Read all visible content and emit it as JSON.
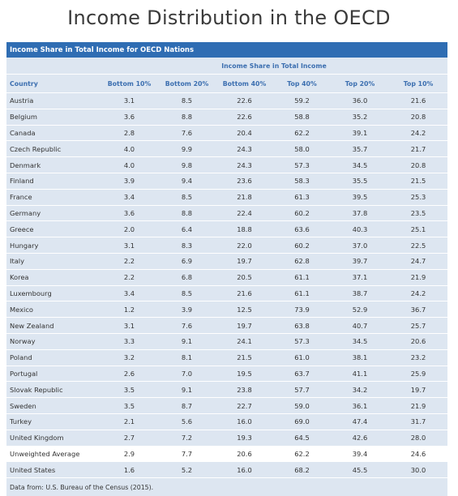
{
  "title": "Income Distribution in the OECD",
  "table": {
    "caption": "Income Share in Total Income for OECD Nations",
    "group_header": "Income Share in Total Income",
    "columns": [
      "Country",
      "Bottom 10%",
      "Bottom 20%",
      "Bottom 40%",
      "Top 40%",
      "Top 20%",
      "Top 10%"
    ],
    "rows": [
      [
        "Austria",
        "3.1",
        "8.5",
        "22.6",
        "59.2",
        "36.0",
        "21.6"
      ],
      [
        "Belgium",
        "3.6",
        "8.8",
        "22.6",
        "58.8",
        "35.2",
        "20.8"
      ],
      [
        "Canada",
        "2.8",
        "7.6",
        "20.4",
        "62.2",
        "39.1",
        "24.2"
      ],
      [
        "Czech Republic",
        "4.0",
        "9.9",
        "24.3",
        "58.0",
        "35.7",
        "21.7"
      ],
      [
        "Denmark",
        "4.0",
        "9.8",
        "24.3",
        "57.3",
        "34.5",
        "20.8"
      ],
      [
        "Finland",
        "3.9",
        "9.4",
        "23.6",
        "58.3",
        "35.5",
        "21.5"
      ],
      [
        "France",
        "3.4",
        "8.5",
        "21.8",
        "61.3",
        "39.5",
        "25.3"
      ],
      [
        "Germany",
        "3.6",
        "8.8",
        "22.4",
        "60.2",
        "37.8",
        "23.5"
      ],
      [
        "Greece",
        "2.0",
        "6.4",
        "18.8",
        "63.6",
        "40.3",
        "25.1"
      ],
      [
        "Hungary",
        "3.1",
        "8.3",
        "22.0",
        "60.2",
        "37.0",
        "22.5"
      ],
      [
        "Italy",
        "2.2",
        "6.9",
        "19.7",
        "62.8",
        "39.7",
        "24.7"
      ],
      [
        "Korea",
        "2.2",
        "6.8",
        "20.5",
        "61.1",
        "37.1",
        "21.9"
      ],
      [
        "Luxembourg",
        "3.4",
        "8.5",
        "21.6",
        "61.1",
        "38.7",
        "24.2"
      ],
      [
        "Mexico",
        "1.2",
        "3.9",
        "12.5",
        "73.9",
        "52.9",
        "36.7"
      ],
      [
        "New Zealand",
        "3.1",
        "7.6",
        "19.7",
        "63.8",
        "40.7",
        "25.7"
      ],
      [
        "Norway",
        "3.3",
        "9.1",
        "24.1",
        "57.3",
        "34.5",
        "20.6"
      ],
      [
        "Poland",
        "3.2",
        "8.1",
        "21.5",
        "61.0",
        "38.1",
        "23.2"
      ],
      [
        "Portugal",
        "2.6",
        "7.0",
        "19.5",
        "63.7",
        "41.1",
        "25.9"
      ],
      [
        "Slovak Republic",
        "3.5",
        "9.1",
        "23.8",
        "57.7",
        "34.2",
        "19.7"
      ],
      [
        "Sweden",
        "3.5",
        "8.7",
        "22.7",
        "59.0",
        "36.1",
        "21.9"
      ],
      [
        "Turkey",
        "2.1",
        "5.6",
        "16.0",
        "69.0",
        "47.4",
        "31.7"
      ],
      [
        "United Kingdom",
        "2.7",
        "7.2",
        "19.3",
        "64.5",
        "42.6",
        "28.0"
      ],
      [
        "Unweighted Average",
        "2.9",
        "7.7",
        "20.6",
        "62.2",
        "39.4",
        "24.6"
      ],
      [
        "United States",
        "1.6",
        "5.2",
        "16.0",
        "68.2",
        "45.5",
        "30.0"
      ]
    ],
    "highlight_row": "Unweighted Average",
    "source": "Data from: U.S. Bureau of the Census (2015)."
  },
  "colors": {
    "header_bar": "#2f6db3",
    "row_bg": "#dde6f1",
    "header_text": "#3c6fb0"
  }
}
